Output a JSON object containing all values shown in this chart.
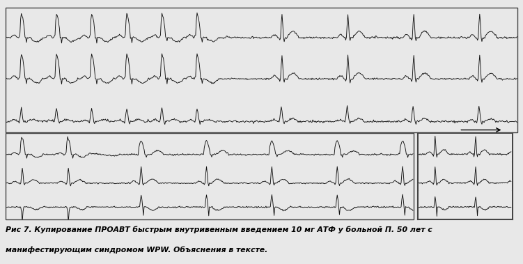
{
  "caption_line1": "Рис 7. Купирование ПРОАВТ быстрым внутривенным введением 10 мг АТФ у больной П. 50 лет с",
  "caption_line2": "манифестирующим синдромом WPW. Объяснения в тексте.",
  "bg_color": "#e8e8e8",
  "ecg_color": "#111111",
  "border_color": "#444444",
  "figure_width": 7.51,
  "figure_height": 3.79,
  "caption_fontsize": 7.8,
  "lw": 0.65
}
